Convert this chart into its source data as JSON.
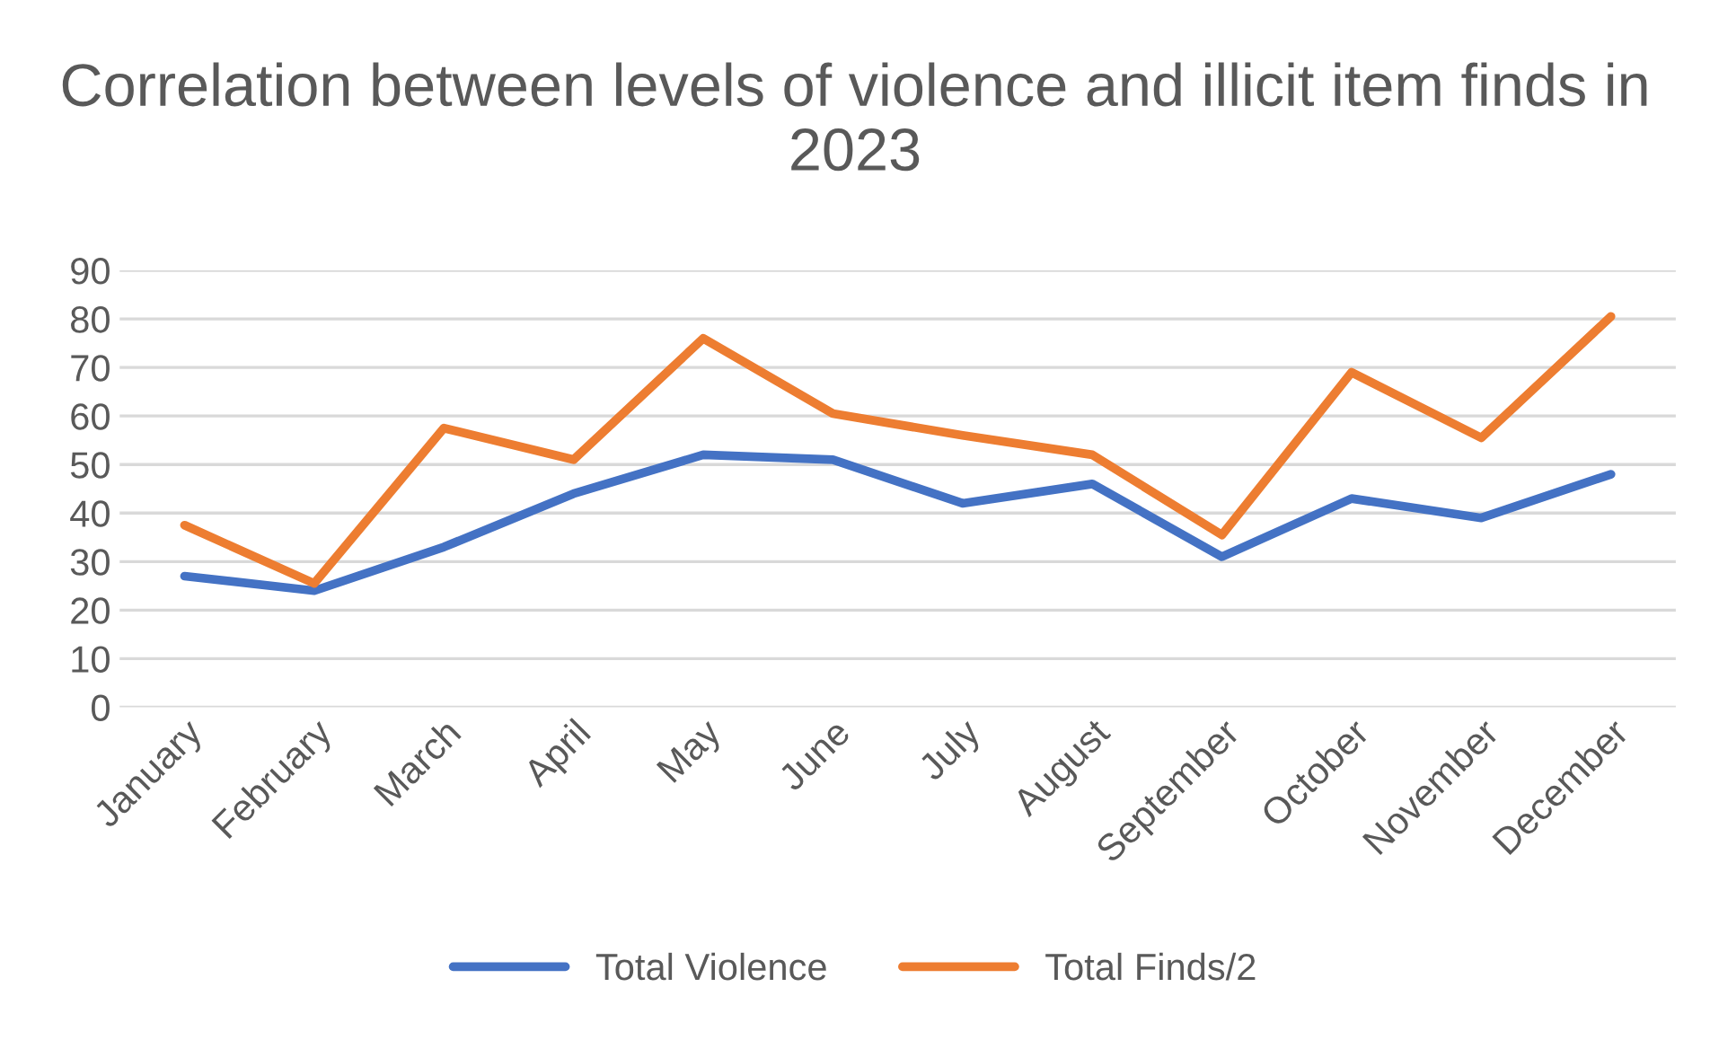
{
  "chart_data": {
    "type": "line",
    "title": "Correlation between levels of violence and illicit item finds in 2023",
    "categories": [
      "January",
      "February",
      "March",
      "April",
      "May",
      "June",
      "July",
      "August",
      "September",
      "October",
      "November",
      "December"
    ],
    "series": [
      {
        "name": "Total Violence",
        "color": "#4472c4",
        "values": [
          27,
          24,
          33,
          44,
          52,
          51,
          42,
          46,
          31,
          43,
          39,
          48
        ]
      },
      {
        "name": "Total Finds/2",
        "color": "#ed7d31",
        "values": [
          37.5,
          25.5,
          57.5,
          51,
          76,
          60.5,
          56,
          52,
          35.5,
          69,
          55.5,
          80.5
        ]
      }
    ],
    "ylim": [
      0,
      90
    ],
    "yticks": [
      0,
      10,
      20,
      30,
      40,
      50,
      60,
      70,
      80,
      90
    ],
    "grid": "y",
    "legend": "bottom",
    "marker": "none",
    "line_style": "solid"
  }
}
